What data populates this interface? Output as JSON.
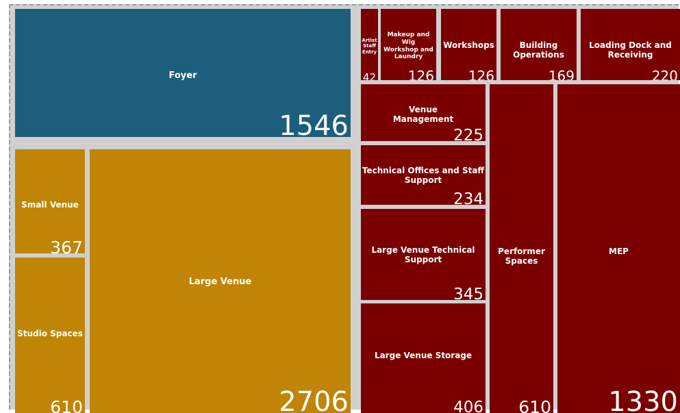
{
  "chart_data": {
    "type": "treemap",
    "colors": {
      "blue": "#1c5e7c",
      "gold": "#c08506",
      "red": "#7a0000",
      "gap": "#d0d0d0"
    },
    "items": [
      {
        "label": "Foyer",
        "value": 1546,
        "color": "blue"
      },
      {
        "label": "Large Venue",
        "value": 2706,
        "color": "gold"
      },
      {
        "label": "Small Venue",
        "value": 367,
        "color": "gold"
      },
      {
        "label": "Studio Spaces",
        "value": 610,
        "color": "gold"
      },
      {
        "label": "Artist Staff Entry",
        "value": 42,
        "color": "red"
      },
      {
        "label": "Makeup and Wig Workshop and Laundry",
        "value": 126,
        "color": "red"
      },
      {
        "label": "Workshops",
        "value": 126,
        "color": "red"
      },
      {
        "label": "Building Operations",
        "value": 169,
        "color": "red"
      },
      {
        "label": "Loading Dock and Receiving",
        "value": 220,
        "color": "red"
      },
      {
        "label": "Venue Management",
        "value": 225,
        "color": "red"
      },
      {
        "label": "Technical Offices and Staff Support",
        "value": 234,
        "color": "red"
      },
      {
        "label": "Large Venue Technical Support",
        "value": 345,
        "color": "red"
      },
      {
        "label": "Large Venue Storage",
        "value": 406,
        "color": "red"
      },
      {
        "label": "Performer Spaces",
        "value": 610,
        "color": "red"
      },
      {
        "label": "MEP",
        "value": 1330,
        "color": "red"
      }
    ]
  }
}
